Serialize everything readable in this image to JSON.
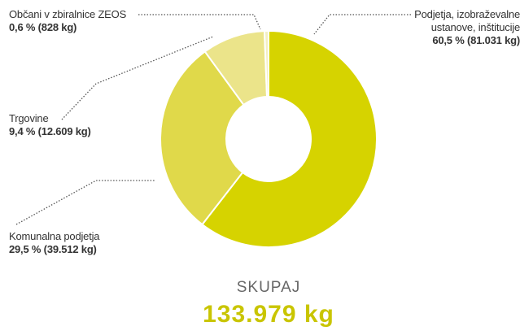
{
  "chart_data": {
    "type": "pie",
    "donut": true,
    "categories": [
      "Podjetja, izobraževalne ustanove, inštitucije",
      "Komunalna podjetja",
      "Trgovine",
      "Občani v zbiralnice ZEOS"
    ],
    "values": [
      60.5,
      29.5,
      9.4,
      0.6
    ],
    "value_labels": [
      "60,5 % (81.031 kg)",
      "29,5 % (39.512 kg)",
      "9,4 % (12.609 kg)",
      "0,6 % (828 kg)"
    ],
    "colors": [
      "#d6d300",
      "#e0d94a",
      "#ebe48a",
      "#f3efc2"
    ],
    "total": {
      "label": "SKUPAJ",
      "value": "133.979 kg"
    }
  }
}
